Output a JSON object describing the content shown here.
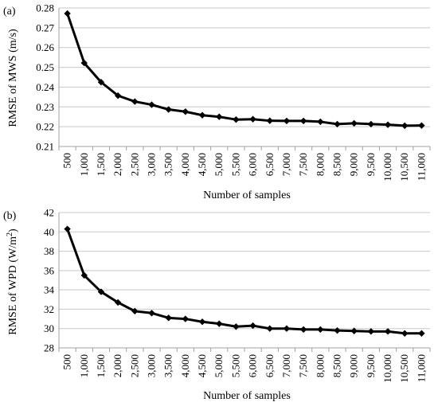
{
  "chart_data": [
    {
      "type": "line",
      "panel_label": "(a)",
      "title": "",
      "xlabel": "Number of samples",
      "ylabel": "RMSE of MWS (m/s)",
      "categories": [
        "500",
        "1,000",
        "1,500",
        "2,000",
        "2,500",
        "3,000",
        "3,500",
        "4,000",
        "4,500",
        "5,000",
        "5,500",
        "6,000",
        "6,500",
        "7,000",
        "7,500",
        "8,000",
        "8,500",
        "9,000",
        "9,500",
        "10,000",
        "10,500",
        "11,000"
      ],
      "ylim": [
        0.21,
        0.28
      ],
      "yticks": [
        0.21,
        0.22,
        0.23,
        0.24,
        0.25,
        0.26,
        0.27,
        0.28
      ],
      "ytick_labels": [
        "0.21",
        "0.22",
        "0.23",
        "0.24",
        "0.25",
        "0.26",
        "0.27",
        "0.28"
      ],
      "grid": "horizontal",
      "series": [
        {
          "values": [
            0.2772,
            0.2522,
            0.2425,
            0.2357,
            0.2327,
            0.2311,
            0.2287,
            0.2276,
            0.2258,
            0.225,
            0.2236,
            0.2238,
            0.223,
            0.2229,
            0.2229,
            0.2225,
            0.2213,
            0.2217,
            0.2213,
            0.221,
            0.2205,
            0.2206
          ],
          "color": "#000000",
          "marker": "diamond"
        }
      ]
    },
    {
      "type": "line",
      "panel_label": "(b)",
      "title": "",
      "xlabel": "Number of samples",
      "ylabel": "RMSE of WPD (W/m",
      "ylabel_sup": "2",
      "ylabel_end": ")",
      "categories": [
        "500",
        "1,000",
        "1,500",
        "2,000",
        "2,500",
        "3,000",
        "3,500",
        "4,000",
        "4,500",
        "5,000",
        "5,500",
        "6,000",
        "6,500",
        "7,000",
        "7,500",
        "8,000",
        "8,500",
        "9,000",
        "9,500",
        "10,000",
        "10,500",
        "11,000"
      ],
      "ylim": [
        28,
        42
      ],
      "yticks": [
        28,
        30,
        32,
        34,
        36,
        38,
        40,
        42
      ],
      "ytick_labels": [
        "28",
        "30",
        "32",
        "34",
        "36",
        "38",
        "40",
        "42"
      ],
      "grid": "horizontal",
      "series": [
        {
          "values": [
            40.3,
            35.5,
            33.8,
            32.7,
            31.8,
            31.6,
            31.1,
            31.0,
            30.7,
            30.5,
            30.2,
            30.3,
            30.0,
            30.0,
            29.9,
            29.9,
            29.8,
            29.75,
            29.7,
            29.7,
            29.5,
            29.5
          ],
          "color": "#000000",
          "marker": "diamond"
        }
      ]
    }
  ]
}
